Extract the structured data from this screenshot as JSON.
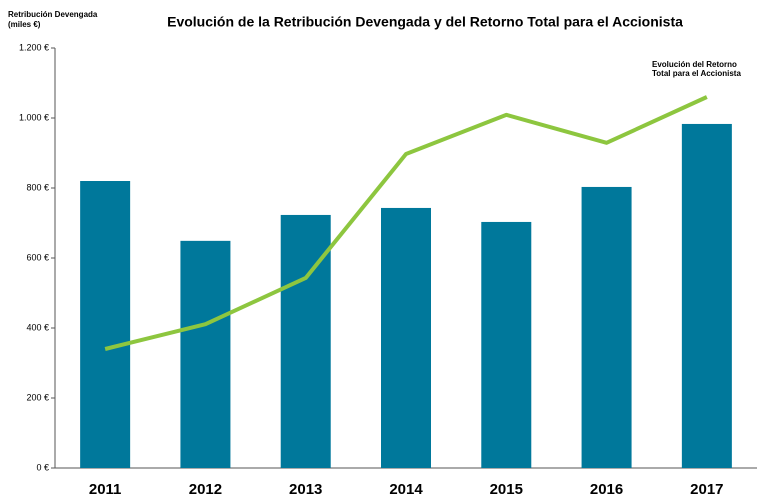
{
  "chart_data": {
    "type": "combo",
    "title": "Evolución de la Retribución Devengada y del Retorno Total para el Accionista",
    "y_label": [
      "Retribución Devengada",
      "(miles €)"
    ],
    "annotation": [
      "Evolución del Retorno",
      "Total para el Accionista"
    ],
    "categories": [
      "2011",
      "2012",
      "2013",
      "2014",
      "2015",
      "2016",
      "2017"
    ],
    "series": [
      {
        "type": "bar",
        "color": "#00789b",
        "values": [
          820,
          649,
          723,
          743,
          703,
          803,
          983
        ]
      },
      {
        "type": "line",
        "color": "#8dc63f",
        "values": [
          340,
          411,
          543,
          897,
          1009,
          929,
          1060
        ]
      }
    ],
    "ylim": [
      0,
      1200
    ],
    "yticks": [
      {
        "value": 0,
        "label": "0 €"
      },
      {
        "value": 200,
        "label": "200 €"
      },
      {
        "value": 400,
        "label": "400 €"
      },
      {
        "value": 600,
        "label": "600 €"
      },
      {
        "value": 800,
        "label": "800 €"
      },
      {
        "value": 1000,
        "label": "1.000 €"
      },
      {
        "value": 1200,
        "label": "1.200 €"
      }
    ],
    "grid": false
  }
}
